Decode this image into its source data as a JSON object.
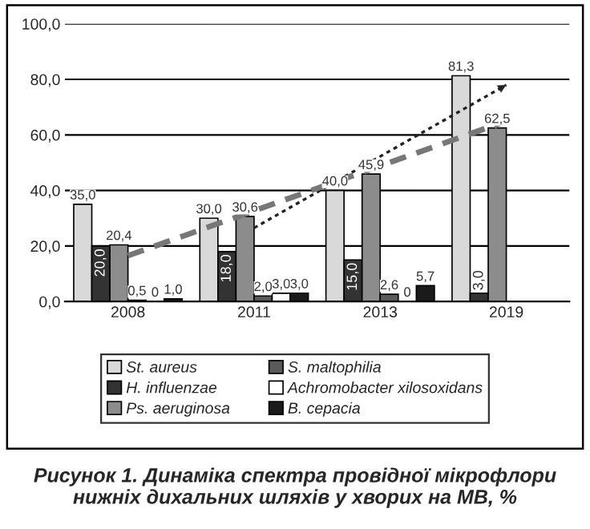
{
  "chart_data": {
    "type": "bar",
    "title": "Рисунок 1. Динаміка спектра провідної мікрофлори нижніх дихальних шляхів у хворих на МВ, %",
    "categories": [
      "2008",
      "2011",
      "2013",
      "2019"
    ],
    "series": [
      {
        "name": "St. aureus",
        "color": "#d9d9d9",
        "values": [
          35.0,
          30.0,
          40.0,
          81.3
        ],
        "value_labels": [
          "35,0",
          "30,0",
          "40,0",
          "81,3"
        ]
      },
      {
        "name": "H. influenzae",
        "color": "#333333",
        "values": [
          20.0,
          18.0,
          15.0,
          3.0
        ],
        "value_labels": [
          "20,0",
          "18,0",
          "15,0",
          "3,0"
        ]
      },
      {
        "name": "Ps. aeruginosa",
        "color": "#8c8c8c",
        "values": [
          20.4,
          30.6,
          45.9,
          62.5
        ],
        "value_labels": [
          "20,4",
          "30,6",
          "45,9",
          "62,5"
        ]
      },
      {
        "name": "S. maltophilia",
        "color": "#5a5a5a",
        "values": [
          0.5,
          2.0,
          2.6,
          null
        ],
        "value_labels": [
          "0,5",
          "2,0",
          "2,6",
          null
        ]
      },
      {
        "name": "Achromobacter xilosoxidans",
        "color": "#ffffff",
        "values": [
          0,
          3.0,
          0,
          null
        ],
        "value_labels": [
          "0",
          "3,0",
          "0",
          null
        ]
      },
      {
        "name": "B. cepacia",
        "color": "#1a1a1a",
        "values": [
          1.0,
          3.0,
          5.7,
          null
        ],
        "value_labels": [
          "1,0",
          "3,0",
          "5,7",
          null
        ]
      },
      {
        "type": "line",
        "color": "#222222",
        "line_style": "dotted",
        "values": [
          null,
          26.5,
          null,
          78
        ]
      },
      {
        "type": "line",
        "color": "#777777",
        "line_style": "dashed",
        "values": [
          16.5,
          null,
          null,
          65
        ]
      }
    ],
    "ylim": [
      0,
      100
    ],
    "yticks": [
      {
        "value": 0,
        "label": "0,0"
      },
      {
        "value": 20,
        "label": "20,0"
      },
      {
        "value": 40,
        "label": "40,0"
      },
      {
        "value": 60,
        "label": "60,0"
      },
      {
        "value": 80,
        "label": "80,0"
      },
      {
        "value": 100,
        "label": "100,0"
      }
    ],
    "grid": "y",
    "legend": "bottom"
  }
}
